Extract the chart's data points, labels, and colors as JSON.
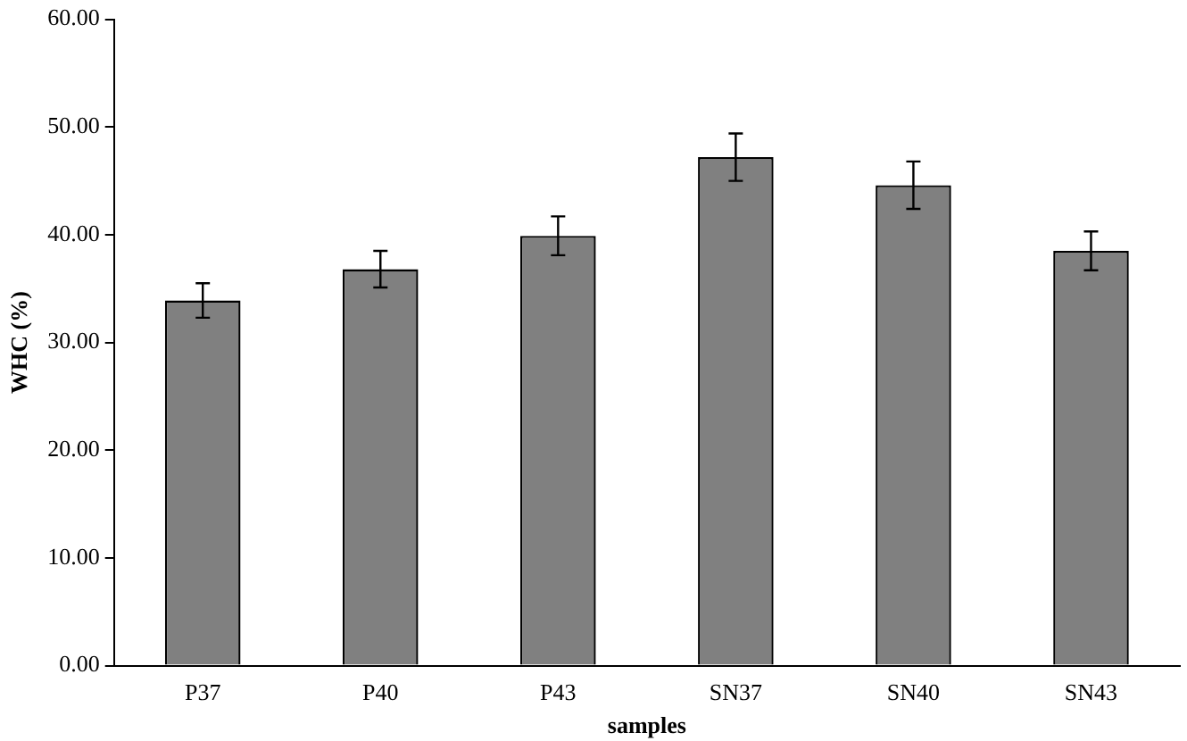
{
  "chart_data": {
    "type": "bar",
    "xlabel": "samples",
    "ylabel": "WHC (%)",
    "categories": [
      "P37",
      "P40",
      "P43",
      "SN37",
      "SN40",
      "SN43"
    ],
    "values": [
      33.9,
      36.8,
      39.9,
      47.2,
      44.6,
      38.5
    ],
    "errors": [
      1.6,
      1.7,
      1.8,
      2.2,
      2.2,
      1.8
    ],
    "color": "#808080",
    "ylim": [
      0,
      60
    ],
    "yticks": [
      {
        "value": 0,
        "label": "0.00"
      },
      {
        "value": 10,
        "label": "10.00"
      },
      {
        "value": 20,
        "label": "20.00"
      },
      {
        "value": 30,
        "label": "30.00"
      },
      {
        "value": 40,
        "label": "40.00"
      },
      {
        "value": 50,
        "label": "50.00"
      },
      {
        "value": 60,
        "label": "60.00"
      }
    ],
    "grid": false,
    "legend": false
  }
}
